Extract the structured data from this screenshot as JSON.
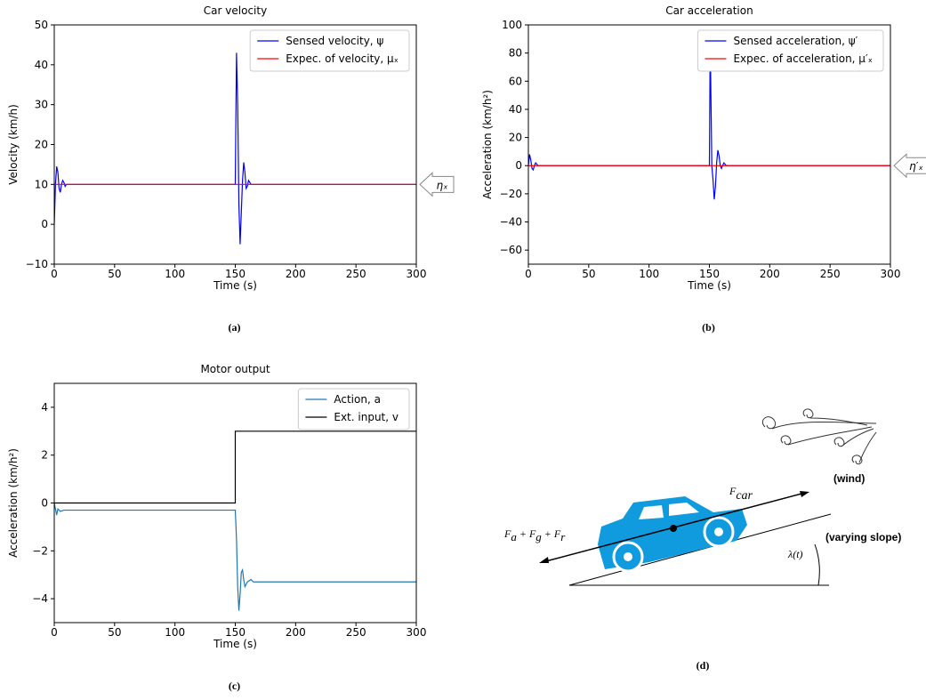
{
  "chart_data": [
    {
      "type": "line",
      "title": "Car velocity",
      "caption": "(a)",
      "xlabel": "Time (s)",
      "ylabel": "Velocity (km/h)",
      "xlim": [
        0,
        300
      ],
      "ylim": [
        -10,
        50
      ],
      "xticks": [
        0,
        50,
        100,
        150,
        200,
        250,
        300
      ],
      "yticks": [
        {
          "value": -10,
          "label": "−10"
        },
        0,
        10,
        20,
        30,
        40,
        50
      ],
      "grid": false,
      "legend": "upper right",
      "annotation": "ηₓ",
      "series": [
        {
          "name": "Sensed velocity, ψ",
          "color": "#0000ff",
          "x": [
            0,
            1,
            2,
            3,
            4,
            5,
            6,
            7,
            8,
            9,
            10,
            30,
            60,
            90,
            120,
            149,
            150,
            151,
            152,
            153,
            154,
            155,
            156,
            157,
            158,
            159,
            160,
            161,
            162,
            163,
            200,
            250,
            300
          ],
          "values": [
            0,
            10,
            14.5,
            13,
            9,
            8,
            10,
            11,
            10.5,
            9.5,
            10,
            10,
            10,
            10,
            10,
            10,
            10,
            43,
            30,
            5,
            -5,
            3,
            11,
            15.5,
            13,
            9,
            9.5,
            11,
            10.5,
            10,
            10,
            10,
            10
          ]
        },
        {
          "name": "Expec. of velocity, μₓ",
          "color": "#ff0000",
          "x": [
            0,
            300
          ],
          "values": [
            10,
            10
          ]
        }
      ]
    },
    {
      "type": "line",
      "title": "Car acceleration",
      "caption": "(b)",
      "xlabel": "Time (s)",
      "ylabel": "Acceleration (km/h²)",
      "xlim": [
        0,
        300
      ],
      "ylim": [
        -70,
        100
      ],
      "xticks": [
        0,
        50,
        100,
        150,
        200,
        250,
        300
      ],
      "yticks": [
        {
          "value": -60,
          "label": "−60"
        },
        {
          "value": -40,
          "label": "−40"
        },
        {
          "value": -20,
          "label": "−20"
        },
        0,
        20,
        40,
        60,
        80,
        100
      ],
      "grid": false,
      "legend": "upper right",
      "annotation": "η′ₓ",
      "series": [
        {
          "name": "Sensed acceleration, ψ′",
          "color": "#0000ff",
          "x": [
            0,
            1,
            2,
            3,
            4,
            5,
            6,
            7,
            8,
            150,
            150.5,
            151,
            152,
            153,
            154,
            155,
            156,
            157,
            158,
            159,
            160,
            162,
            164,
            300
          ],
          "values": [
            0,
            8,
            4,
            -2,
            -3,
            0,
            2,
            1,
            0,
            0,
            67,
            67,
            0,
            -10,
            -24,
            -15,
            2,
            11,
            7,
            0,
            -2,
            2,
            0,
            0
          ]
        },
        {
          "name": "Expec. of acceleration, μ′ₓ",
          "color": "#ff0000",
          "x": [
            0,
            300
          ],
          "values": [
            0,
            0
          ]
        }
      ]
    },
    {
      "type": "line",
      "title": "Motor output",
      "caption": "(c)",
      "xlabel": "Time (s)",
      "ylabel": "Acceleration (km/h²)",
      "xlim": [
        0,
        300
      ],
      "ylim": [
        -5,
        5
      ],
      "xticks": [
        0,
        50,
        100,
        150,
        200,
        250,
        300
      ],
      "yticks": [
        {
          "value": -4,
          "label": "−4"
        },
        {
          "value": -2,
          "label": "−2"
        },
        0,
        2,
        4
      ],
      "grid": false,
      "legend": "upper right",
      "series": [
        {
          "name": "Action, a",
          "color": "#1f77b4",
          "x": [
            0,
            2,
            3,
            5,
            8,
            150,
            151,
            152,
            153,
            154,
            155,
            156,
            157,
            158,
            160,
            163,
            165,
            300
          ],
          "values": [
            0,
            -0.5,
            -0.25,
            -0.35,
            -0.3,
            -0.3,
            -1.5,
            -3.5,
            -4.5,
            -3.8,
            -2.9,
            -2.8,
            -3.2,
            -3.5,
            -3.3,
            -3.2,
            -3.3,
            -3.3
          ]
        },
        {
          "name": "Ext. input, v",
          "color": "#000000",
          "x": [
            0,
            150,
            150,
            300
          ],
          "values": [
            0,
            0,
            3,
            3
          ]
        }
      ]
    }
  ],
  "diagram": {
    "caption": "(d)",
    "car_force": [
      "F",
      "car"
    ],
    "other_forces": [
      [
        "F",
        "a"
      ],
      [
        " + F",
        "g"
      ],
      [
        " + F",
        "r"
      ]
    ],
    "wind": "(wind)",
    "slope": "(varying slope)",
    "angle": "λ(t)"
  }
}
